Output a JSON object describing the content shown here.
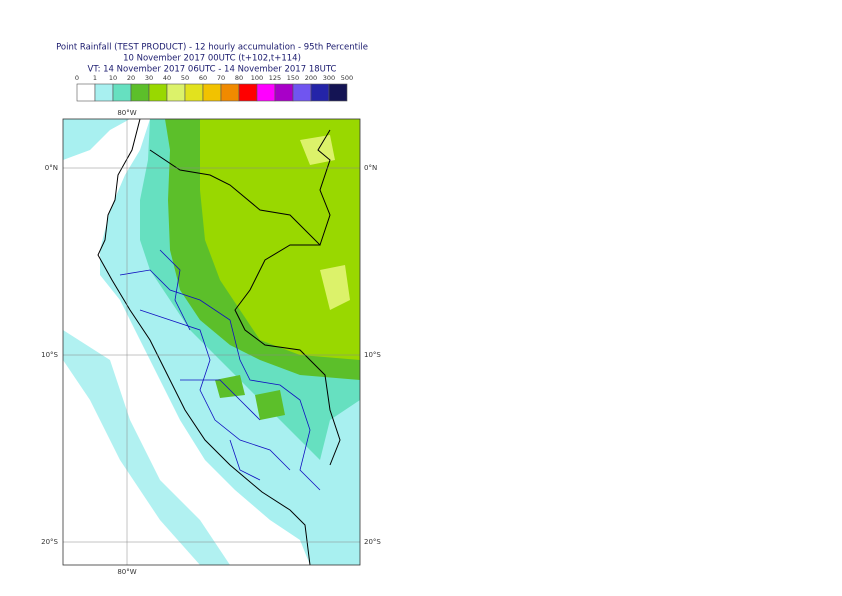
{
  "header": {
    "lines": [
      "Point Rainfall (TEST PRODUCT) - 12 hourly accumulation - 95th Percentile",
      "10 November 2017 00UTC (t+102,t+114)",
      "VT: 14 November 2017 06UTC - 14 November 2017 18UTC"
    ]
  },
  "legend": {
    "labels": [
      "0",
      "1",
      "10",
      "20",
      "30",
      "40",
      "50",
      "60",
      "70",
      "80",
      "100",
      "125",
      "150",
      "200",
      "300",
      "500"
    ],
    "colors": [
      "#ffffff",
      "#a8f0f0",
      "#66e0c0",
      "#5cbf2a",
      "#99d800",
      "#dcf26a",
      "#e2e21e",
      "#f2c200",
      "#f08a00",
      "#ff0000",
      "#ff00ff",
      "#a800c8",
      "#7055f0",
      "#2424a8",
      "#141454"
    ]
  },
  "map": {
    "longitude_labels": [
      "80°W",
      "80°W"
    ],
    "latitude_labels": [
      "0°N",
      "10°S",
      "20°S",
      "0°N",
      "10°S",
      "20°S"
    ]
  }
}
